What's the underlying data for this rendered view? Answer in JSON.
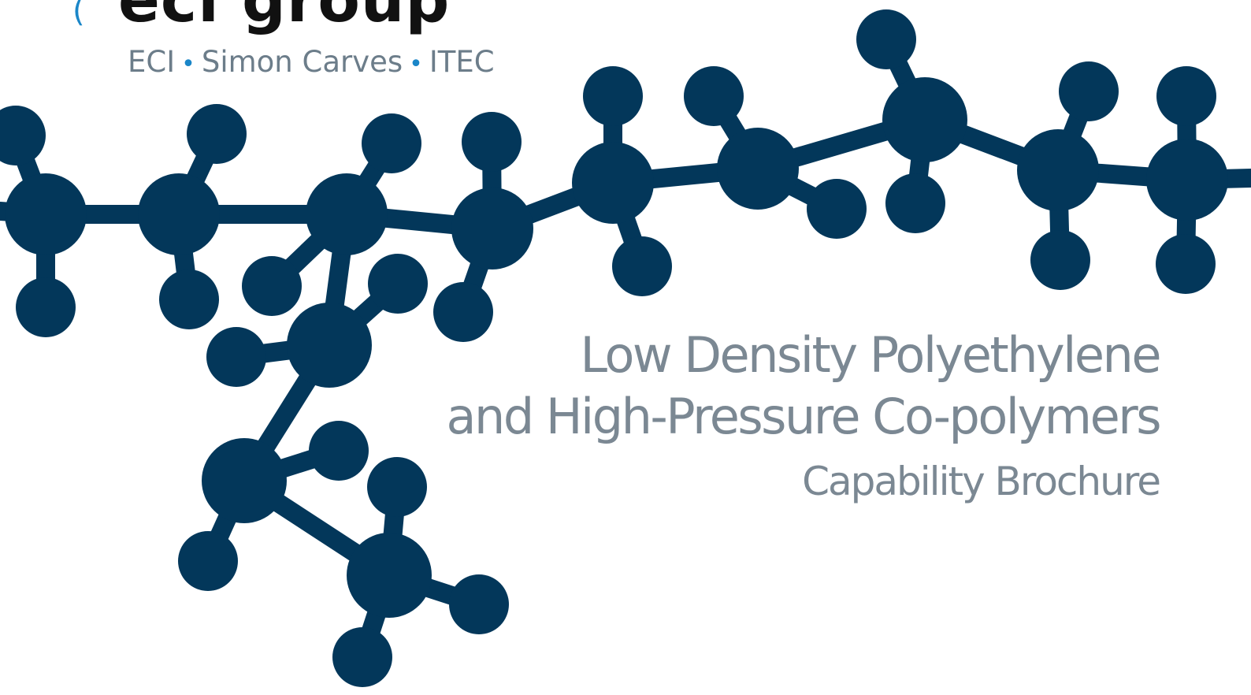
{
  "brand": {
    "logo_text": "eci group",
    "tagline_items": [
      "ECI",
      "Simon Carves",
      "ITEC"
    ],
    "tagline_separator": "•",
    "accent_color": "#1a86c8",
    "text_color": "#111111"
  },
  "title": {
    "line1": "Low Density Polyethylene",
    "line2": "and High-Pressure Co-polymers",
    "subtitle": "Capability Brochure",
    "color": "#7b8893"
  },
  "illustration": {
    "subject": "molecule-diagram",
    "color": "#03375a"
  }
}
